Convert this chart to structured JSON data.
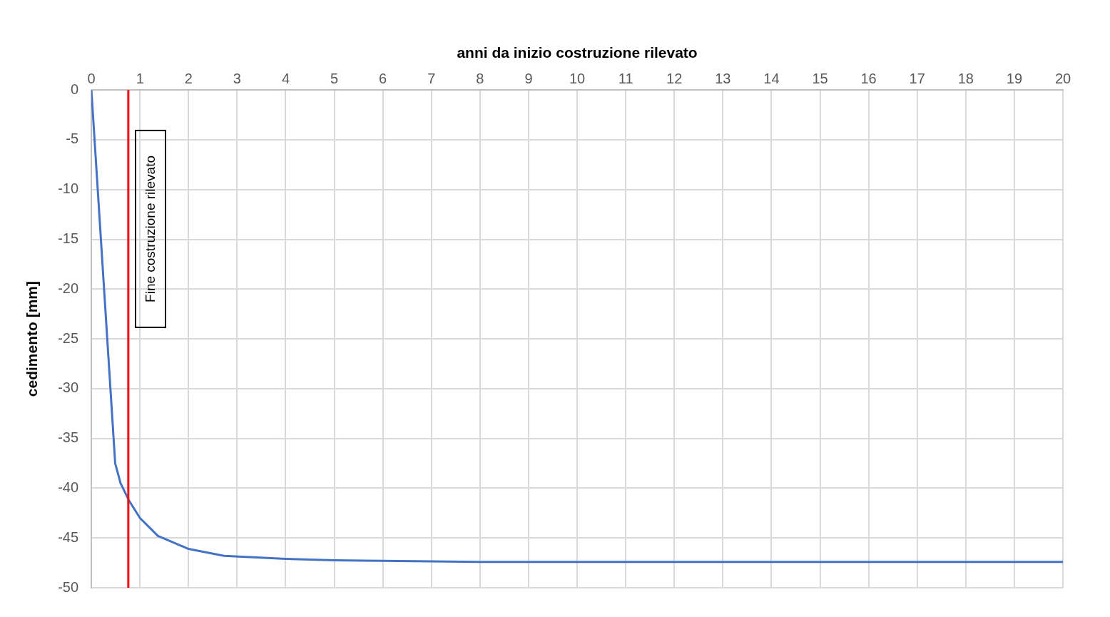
{
  "chart_data": {
    "type": "line",
    "xlabel": "anni da inizio costruzione rilevato",
    "ylabel": "cedimento [mm]",
    "x": [
      0,
      0.49,
      0.6,
      0.77,
      1,
      1.37,
      2,
      2.73,
      4,
      5,
      6,
      8,
      10,
      20
    ],
    "series": [
      {
        "color": "#4472c4",
        "values": [
          0,
          -37.5,
          -39.5,
          -41.2,
          -43,
          -44.8,
          -46.1,
          -46.8,
          -47.1,
          -47.25,
          -47.3,
          -47.4,
          -47.4,
          -47.4
        ]
      }
    ],
    "xlim": [
      0,
      20
    ],
    "xticks": [
      0,
      1,
      2,
      3,
      4,
      5,
      6,
      7,
      8,
      9,
      10,
      11,
      12,
      13,
      14,
      15,
      16,
      17,
      18,
      19,
      20
    ],
    "ylim": [
      -50,
      0
    ],
    "yticks": [
      0,
      -5,
      -10,
      -15,
      -20,
      -25,
      -30,
      -35,
      -40,
      -45,
      -50
    ],
    "ref_lines": [
      {
        "axis": "x",
        "value": 0.76,
        "label": "Fine costruzione rilevato",
        "color": "#ff0000"
      }
    ],
    "grid": true,
    "legend": false,
    "marker": "none",
    "line_style": "solid"
  }
}
